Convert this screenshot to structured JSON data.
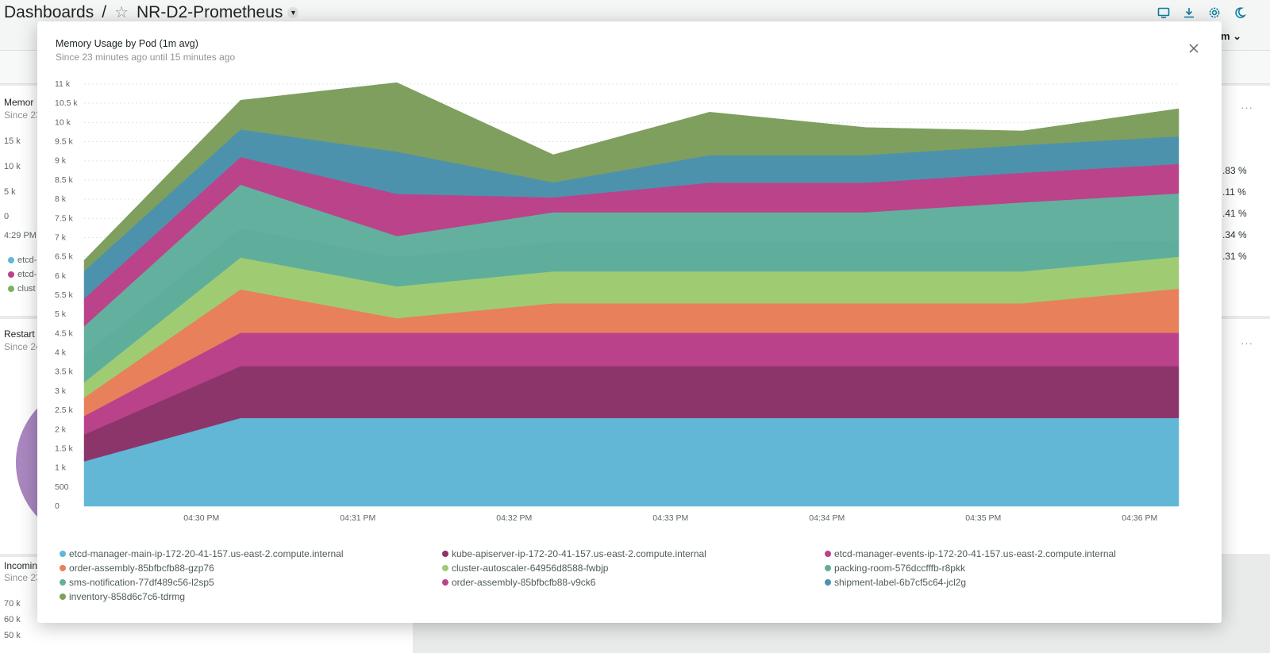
{
  "header": {
    "breadcrumb_root": "Dashboards",
    "separator": "/",
    "dashboard_name": "NR-D2-Prometheus",
    "time_label_partial": "pm",
    "icons": [
      "tv-icon",
      "download-icon",
      "settings-icon",
      "dark-mode-icon"
    ]
  },
  "background": {
    "panel1": {
      "title_partial": "Memor",
      "subtitle_partial": "Since 23",
      "ticks": [
        "15 k",
        "10 k",
        "5 k",
        "0"
      ],
      "time": "4:29 PM",
      "legend": [
        "etcd-",
        "etcd-",
        "clust"
      ]
    },
    "panel2": {
      "title_partial": "Restart",
      "subtitle_partial": "Since 24"
    },
    "panel3": {
      "title_partial": "Incomin",
      "subtitle_partial": "Since 23",
      "ticks": [
        "70 k",
        "60 k",
        "50 k"
      ]
    },
    "right_percents": [
      ".83 %",
      ".11 %",
      ".41 %",
      ".34 %",
      ".31 %"
    ],
    "menu_dots": "···"
  },
  "modal": {
    "title": "Memory Usage by Pod (1m avg)",
    "subtitle": "Since 23 minutes ago until 15 minutes ago",
    "close_icon": "close-icon"
  },
  "chart_data": {
    "type": "area",
    "stacked": true,
    "title": "Memory Usage by Pod (1m avg)",
    "x": [
      "04:29:15 PM",
      "04:30:15 PM",
      "04:31:15 PM",
      "04:32:15 PM",
      "04:33:15 PM",
      "04:34:15 PM",
      "04:35:15 PM",
      "04:36:15 PM"
    ],
    "xticks": [
      "04:30 PM",
      "04:31 PM",
      "04:32 PM",
      "04:33 PM",
      "04:34 PM",
      "04:35 PM",
      "04:36 PM"
    ],
    "yticks": [
      "0",
      "500",
      "1 k",
      "1.5 k",
      "2 k",
      "2.5 k",
      "3 k",
      "3.5 k",
      "4 k",
      "4.5 k",
      "5 k",
      "5.5 k",
      "6 k",
      "6.5 k",
      "7 k",
      "7.5 k",
      "8 k",
      "8.5 k",
      "9 k",
      "9.5 k",
      "10 k",
      "10.5 k",
      "11 k"
    ],
    "ylim": [
      0,
      11000
    ],
    "grid": true,
    "legend_position": "bottom",
    "series": [
      {
        "name": "etcd-manager-main-ip-172-20-41-157.us-east-2.compute.internal",
        "color": "#62b6d6",
        "values": [
          1170,
          2300,
          2300,
          2300,
          2300,
          2300,
          2300,
          2300
        ]
      },
      {
        "name": "kube-apiserver-ip-172-20-41-157.us-east-2.compute.internal",
        "color": "#8c356a",
        "values": [
          700,
          1350,
          1350,
          1350,
          1350,
          1350,
          1350,
          1350
        ]
      },
      {
        "name": "etcd-manager-events-ip-172-20-41-157.us-east-2.compute.internal",
        "color": "#b9428a",
        "values": [
          480,
          870,
          870,
          870,
          870,
          870,
          870,
          870
        ]
      },
      {
        "name": "order-assembly-85bfbcfb88-gzp76",
        "color": "#e8805c",
        "values": [
          480,
          1130,
          380,
          770,
          770,
          770,
          770,
          1150
        ]
      },
      {
        "name": "cluster-autoscaler-64956d8588-fwbjp",
        "color": "#9fcc73",
        "values": [
          400,
          830,
          830,
          830,
          830,
          830,
          830,
          830
        ]
      },
      {
        "name": "packing-room-576dccfffb-r8pkk",
        "color": "#5fae9c",
        "values": [
          720,
          770,
          770,
          770,
          770,
          770,
          770,
          420
        ]
      },
      {
        "name": "sms-notification-77df489c56-l2sp5",
        "color": "#64b09e",
        "values": [
          740,
          1130,
          540,
          770,
          770,
          770,
          1030,
          1230
        ]
      },
      {
        "name": "order-assembly-85bfbcfb88-v9ck6",
        "color": "#bb438a",
        "values": [
          720,
          720,
          1100,
          390,
          770,
          770,
          770,
          770
        ]
      },
      {
        "name": "shipment-label-6b7cf5c64-jcl2g",
        "color": "#4d92ad",
        "values": [
          720,
          720,
          1100,
          390,
          720,
          720,
          720,
          720
        ]
      },
      {
        "name": "inventory-858d6c7c6-tdrmg",
        "color": "#7e9f5e",
        "values": [
          280,
          760,
          1800,
          720,
          1120,
          720,
          370,
          720
        ]
      }
    ]
  }
}
